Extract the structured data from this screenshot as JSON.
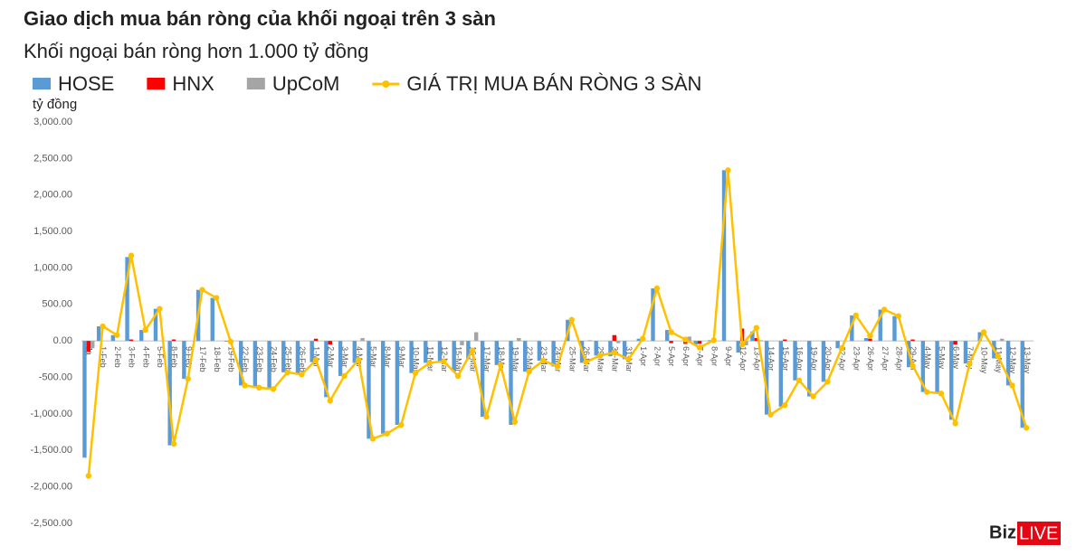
{
  "chart_data": {
    "type": "bar_line",
    "title": "Giao dịch mua bán ròng của khối ngoại trên 3 sàn",
    "subtitle": "Khối ngoại bán ròng hơn 1.000 tỷ đồng",
    "y_axis_label": "tỷ đồng",
    "logo": [
      "Biz",
      "LIVE"
    ],
    "categories": [
      "Ja",
      "1-Feb",
      "2-Feb",
      "3-Feb",
      "4-Feb",
      "5-Feb",
      "8-Feb",
      "9-Feb",
      "17-Feb",
      "18-Feb",
      "19-Feb",
      "22-Feb",
      "23-Feb",
      "24-Feb",
      "25-Feb",
      "26-Feb",
      "1-Mar",
      "2-Mar",
      "3-Mar",
      "4-Mar",
      "5-Mar",
      "8-Mar",
      "9-Mar",
      "10-Mar",
      "11-Mar",
      "12-Mar",
      "15-Mar",
      "16-Mar",
      "17-Mar",
      "18-Mar",
      "19-Mar",
      "22-Mar",
      "23-Mar",
      "24-Mar",
      "25-Mar",
      "26-Mar",
      "29-Mar",
      "30-Mar",
      "31-Mar",
      "1-Apr",
      "2-Apr",
      "5-Apr",
      "6-Apr",
      "7-Apr",
      "8-Apr",
      "9-Apr",
      "12-Apr",
      "13-Apr",
      "14-Apr",
      "15-Apr",
      "16-Apr",
      "19-Apr",
      "20-Apr",
      "22-Apr",
      "23-Apr",
      "26-Apr",
      "27-Apr",
      "28-Apr",
      "29-Apr",
      "4-May",
      "5-May",
      "6-May",
      "7-May",
      "10-May",
      "11-May",
      "12-May",
      "13-May"
    ],
    "series": [
      {
        "name": "HOSE",
        "kind": "bar",
        "color": "#5b9bd5",
        "values": [
          -1600,
          200,
          80,
          1150,
          150,
          440,
          -1430,
          -520,
          700,
          590,
          -10,
          -610,
          -640,
          -660,
          -430,
          -460,
          -290,
          -770,
          -480,
          -300,
          -1340,
          -1270,
          -1150,
          -440,
          -300,
          -280,
          -420,
          -250,
          -1040,
          -330,
          -1150,
          -420,
          -270,
          -350,
          290,
          -300,
          -200,
          -210,
          -250,
          30,
          720,
          150,
          0,
          -50,
          10,
          2340,
          -160,
          130,
          -1010,
          -900,
          -540,
          -760,
          -560,
          -100,
          350,
          40,
          430,
          340,
          -360,
          -700,
          -720,
          -1080,
          -310,
          120,
          -240,
          -610,
          -1190
        ]
      },
      {
        "name": "HNX",
        "kind": "bar",
        "color": "#ff0000",
        "values": [
          -150,
          0,
          0,
          20,
          0,
          0,
          20,
          0,
          0,
          0,
          0,
          0,
          0,
          0,
          0,
          0,
          30,
          -50,
          0,
          0,
          0,
          0,
          0,
          0,
          0,
          0,
          0,
          0,
          0,
          0,
          0,
          0,
          0,
          0,
          0,
          0,
          0,
          80,
          0,
          0,
          0,
          -30,
          -40,
          -40,
          0,
          0,
          170,
          40,
          0,
          20,
          0,
          0,
          0,
          0,
          0,
          30,
          0,
          0,
          20,
          0,
          0,
          -50,
          0,
          0,
          0,
          0,
          0
        ]
      },
      {
        "name": "UpCoM",
        "kind": "bar",
        "color": "#a5a5a5",
        "values": [
          -100,
          0,
          0,
          0,
          0,
          0,
          0,
          0,
          0,
          0,
          0,
          0,
          0,
          0,
          0,
          0,
          0,
          0,
          0,
          40,
          0,
          0,
          0,
          0,
          0,
          0,
          -60,
          120,
          0,
          0,
          40,
          0,
          0,
          0,
          0,
          10,
          0,
          -30,
          0,
          0,
          0,
          0,
          60,
          0,
          0,
          0,
          -60,
          10,
          0,
          0,
          0,
          0,
          0,
          0,
          0,
          0,
          0,
          0,
          0,
          0,
          0,
          0,
          0,
          0,
          30,
          0,
          0
        ]
      },
      {
        "name": "GIÁ TRỊ MUA BÁN RÒNG 3 SÀN",
        "kind": "line",
        "color": "#ffc000",
        "values": [
          -1850,
          200,
          80,
          1170,
          150,
          440,
          -1410,
          -520,
          700,
          590,
          -10,
          -610,
          -640,
          -660,
          -430,
          -460,
          -260,
          -820,
          -480,
          -260,
          -1340,
          -1270,
          -1150,
          -440,
          -300,
          -280,
          -480,
          -130,
          -1040,
          -330,
          -1110,
          -420,
          -270,
          -350,
          290,
          -290,
          -200,
          -160,
          -250,
          30,
          720,
          120,
          20,
          -90,
          10,
          2340,
          -50,
          180,
          -1010,
          -880,
          -540,
          -760,
          -560,
          -100,
          350,
          70,
          430,
          340,
          -340,
          -700,
          -720,
          -1130,
          -310,
          120,
          -210,
          -610,
          -1190
        ]
      }
    ],
    "ylim": [
      -2500,
      3000
    ],
    "yticks": [
      {
        "value": -2500,
        "label": "-2,500.00"
      },
      {
        "value": -2000,
        "label": "-2,000.00"
      },
      {
        "value": -1500,
        "label": "-1,500.00"
      },
      {
        "value": -1000,
        "label": "-1,000.00"
      },
      {
        "value": -500,
        "label": "-500.00"
      },
      {
        "value": 0,
        "label": "0.00"
      },
      {
        "value": 500,
        "label": "500.00"
      },
      {
        "value": 1000,
        "label": "1,000.00"
      },
      {
        "value": 1500,
        "label": "1,500.00"
      },
      {
        "value": 2000,
        "label": "2,000.00"
      },
      {
        "value": 2500,
        "label": "2,500.00"
      },
      {
        "value": 3000,
        "label": "3,000.00"
      }
    ],
    "grid": false
  }
}
